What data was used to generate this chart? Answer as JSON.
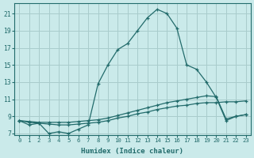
{
  "xlabel": "Humidex (Indice chaleur)",
  "background_color": "#caeaea",
  "grid_color": "#a8cccc",
  "line_color": "#226b6b",
  "xlim": [
    -0.5,
    23.5
  ],
  "ylim": [
    6.8,
    22.2
  ],
  "xticks": [
    0,
    1,
    2,
    3,
    4,
    5,
    6,
    7,
    8,
    9,
    10,
    11,
    12,
    13,
    14,
    15,
    16,
    17,
    18,
    19,
    20,
    21,
    22,
    23
  ],
  "yticks": [
    7,
    9,
    11,
    13,
    15,
    17,
    19,
    21
  ],
  "main_x": [
    0,
    1,
    2,
    3,
    4,
    5,
    6,
    7,
    8,
    9,
    10,
    11,
    12,
    13,
    14,
    15,
    16,
    17,
    18,
    19,
    20,
    21,
    22,
    23
  ],
  "main_y": [
    8.5,
    8.0,
    8.2,
    7.0,
    7.2,
    7.0,
    7.5,
    8.0,
    12.8,
    15.0,
    16.8,
    17.5,
    19.0,
    20.5,
    21.5,
    21.0,
    19.3,
    15.0,
    14.5,
    13.0,
    11.2,
    8.5,
    9.0,
    9.2
  ],
  "line2_x": [
    0,
    1,
    2,
    3,
    4,
    5,
    6,
    7,
    8,
    9,
    10,
    11,
    12,
    13,
    14,
    15,
    16,
    17,
    18,
    19,
    20,
    21,
    22,
    23
  ],
  "line2_y": [
    8.5,
    8.4,
    8.3,
    8.3,
    8.3,
    8.3,
    8.4,
    8.5,
    8.6,
    8.8,
    9.1,
    9.4,
    9.7,
    10.0,
    10.3,
    10.6,
    10.8,
    11.0,
    11.2,
    11.4,
    11.3,
    8.7,
    9.0,
    9.2
  ],
  "line3_x": [
    0,
    1,
    2,
    3,
    4,
    5,
    6,
    7,
    8,
    9,
    10,
    11,
    12,
    13,
    14,
    15,
    16,
    17,
    18,
    19,
    20,
    21,
    22,
    23
  ],
  "line3_y": [
    8.5,
    8.3,
    8.2,
    8.1,
    8.0,
    8.0,
    8.1,
    8.2,
    8.3,
    8.5,
    8.8,
    9.0,
    9.3,
    9.5,
    9.8,
    10.0,
    10.2,
    10.3,
    10.5,
    10.6,
    10.6,
    10.7,
    10.7,
    10.8
  ]
}
